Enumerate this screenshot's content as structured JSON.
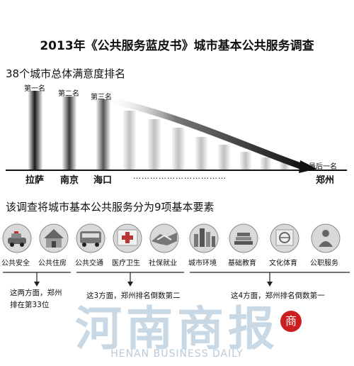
{
  "title": "2013年《公共服务蓝皮书》城市基本公共服务调查",
  "ranking": {
    "heading": "38个城市总体满意度排名",
    "labels": {
      "first": "第一名",
      "second": "第二名",
      "third": "第三名",
      "last": "最后一名"
    },
    "cities": {
      "first": "拉萨",
      "second": "南京",
      "third": "海口",
      "last": "郑州"
    },
    "ellipsis": "……………………………"
  },
  "elements": {
    "heading": "该调查将城市基本公共服务分为9项基本要素",
    "items": [
      {
        "label": "公共安全",
        "icon": "police-car-icon"
      },
      {
        "label": "公共住房",
        "icon": "house-icon"
      },
      {
        "label": "公共交通",
        "icon": "bus-icon"
      },
      {
        "label": "医疗卫生",
        "icon": "medical-cross-icon"
      },
      {
        "label": "社保就业",
        "icon": "handshake-icon"
      },
      {
        "label": "城市环境",
        "icon": "city-skyline-icon"
      },
      {
        "label": "基础教育",
        "icon": "books-icon"
      },
      {
        "label": "文化体育",
        "icon": "sports-icon"
      },
      {
        "label": "公职服务",
        "icon": "official-icon"
      }
    ],
    "groups": [
      {
        "note_line1": "这两方面，郑州",
        "note_line2": "排在第33位"
      },
      {
        "note_line1": "这3方面，郑州排名倒数第二"
      },
      {
        "note_line1": "这4方面，郑州排名倒数第一"
      }
    ]
  },
  "watermark": {
    "name_cn": "河南商报",
    "name_en": "HENAN BUSINESS DAILY",
    "seal_char": "商"
  }
}
